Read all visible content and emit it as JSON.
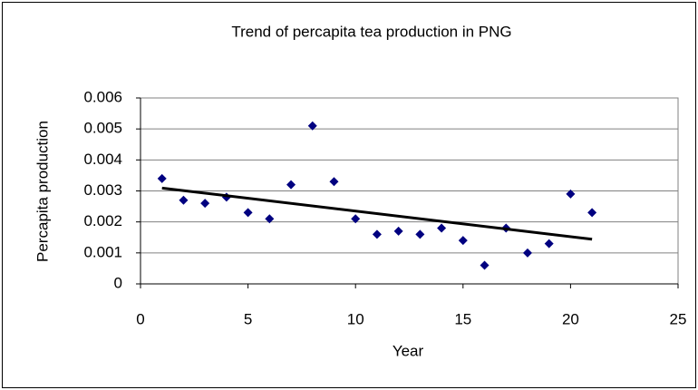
{
  "chart_data": {
    "type": "scatter",
    "title": "Trend of percapita tea production in PNG",
    "x_label": "Year",
    "y_label": "Percapita production",
    "x": [
      1,
      2,
      3,
      4,
      5,
      6,
      7,
      8,
      9,
      10,
      11,
      12,
      13,
      14,
      15,
      16,
      17,
      18,
      19,
      20,
      21
    ],
    "values": [
      0.0034,
      0.0027,
      0.0026,
      0.0028,
      0.0023,
      0.0021,
      0.0032,
      0.0051,
      0.0033,
      0.0021,
      0.0016,
      0.0017,
      0.0016,
      0.0018,
      0.0014,
      0.0006,
      0.0018,
      0.001,
      0.0013,
      0.0029,
      0.0023
    ],
    "color": "#000080",
    "trendline": "linear",
    "trendline_color": "#000000",
    "xlim": [
      0,
      25
    ],
    "xticks": [
      0,
      5,
      10,
      15,
      20,
      25
    ],
    "ylim": [
      0,
      0.006
    ],
    "yticks": [
      0,
      0.001,
      0.002,
      0.003,
      0.004,
      0.005,
      0.006
    ],
    "grid": true
  }
}
